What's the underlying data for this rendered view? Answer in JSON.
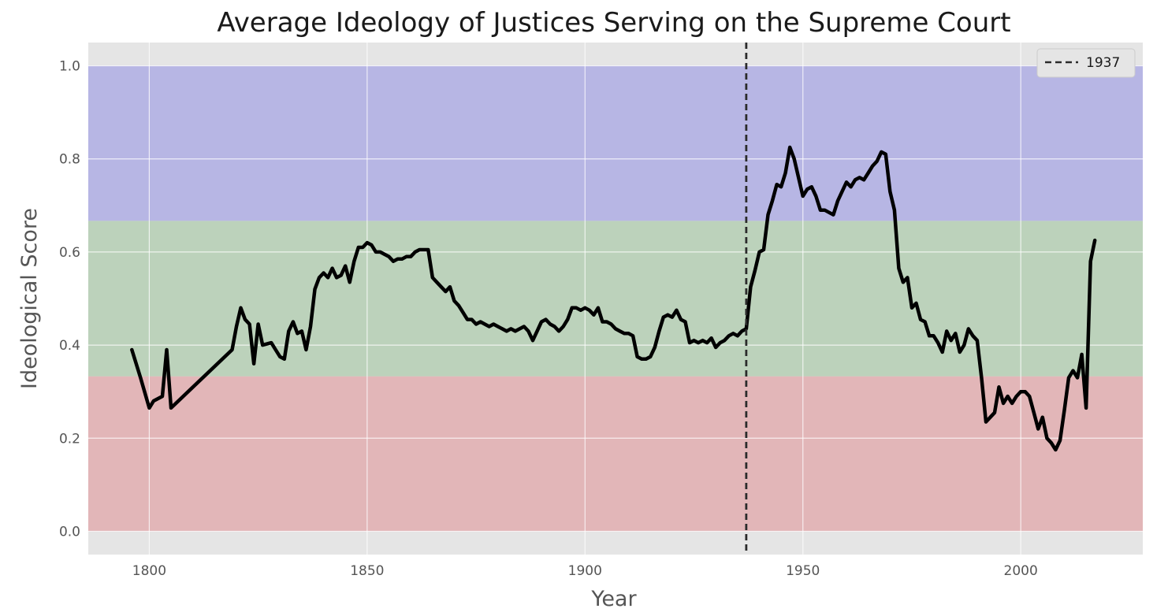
{
  "chart_data": {
    "type": "line",
    "title": "Average Ideology of Justices Serving on the Supreme Court",
    "xlabel": "Year",
    "ylabel": "Ideological Score",
    "xlim": [
      1786,
      2028
    ],
    "ylim": [
      -0.05,
      1.05
    ],
    "xticks": [
      1800,
      1850,
      1900,
      1950,
      2000
    ],
    "yticks": [
      0.0,
      0.2,
      0.4,
      0.6,
      0.8,
      1.0
    ],
    "ytick_labels": [
      "0.0",
      "0.2",
      "0.4",
      "0.6",
      "0.8",
      "1.0"
    ],
    "grid": true,
    "legend_position": "top-right",
    "bands": [
      {
        "from": 0.0,
        "to": 0.333,
        "color": "#e2b6b8"
      },
      {
        "from": 0.333,
        "to": 0.667,
        "color": "#bcd2bb"
      },
      {
        "from": 0.667,
        "to": 1.0,
        "color": "#b7b6e4"
      }
    ],
    "vline": {
      "x": 1937,
      "label": "1937",
      "style": "dashed",
      "color": "#2b2b2b"
    },
    "series": [
      {
        "color": "#000000",
        "x": [
          1796,
          1798,
          1800,
          1801,
          1803,
          1804,
          1805,
          1819,
          1820,
          1821,
          1822,
          1823,
          1824,
          1825,
          1826,
          1828,
          1829,
          1830,
          1831,
          1832,
          1833,
          1834,
          1835,
          1836,
          1837,
          1838,
          1839,
          1840,
          1841,
          1842,
          1843,
          1844,
          1845,
          1846,
          1847,
          1848,
          1849,
          1850,
          1851,
          1852,
          1853,
          1854,
          1855,
          1856,
          1857,
          1858,
          1859,
          1860,
          1861,
          1862,
          1863,
          1864,
          1865,
          1866,
          1867,
          1868,
          1869,
          1870,
          1871,
          1872,
          1873,
          1874,
          1875,
          1876,
          1877,
          1878,
          1879,
          1880,
          1881,
          1882,
          1883,
          1884,
          1885,
          1886,
          1887,
          1888,
          1889,
          1890,
          1891,
          1892,
          1893,
          1894,
          1895,
          1896,
          1897,
          1898,
          1899,
          1900,
          1901,
          1902,
          1903,
          1904,
          1905,
          1906,
          1907,
          1908,
          1909,
          1910,
          1911,
          1912,
          1913,
          1914,
          1915,
          1916,
          1917,
          1918,
          1919,
          1920,
          1921,
          1922,
          1923,
          1924,
          1925,
          1926,
          1927,
          1928,
          1929,
          1930,
          1931,
          1932,
          1933,
          1934,
          1935,
          1936,
          1937,
          1938,
          1939,
          1940,
          1941,
          1942,
          1943,
          1944,
          1945,
          1946,
          1947,
          1948,
          1949,
          1950,
          1951,
          1952,
          1953,
          1954,
          1955,
          1956,
          1957,
          1958,
          1959,
          1960,
          1961,
          1962,
          1963,
          1964,
          1965,
          1966,
          1967,
          1968,
          1969,
          1970,
          1971,
          1972,
          1973,
          1974,
          1975,
          1976,
          1977,
          1978,
          1979,
          1980,
          1981,
          1982,
          1983,
          1984,
          1985,
          1986,
          1987,
          1988,
          1989,
          1990,
          1991,
          1992,
          1993,
          1994,
          1995,
          1996,
          1997,
          1998,
          1999,
          2000,
          2001,
          2002,
          2003,
          2004,
          2005,
          2006,
          2007,
          2008,
          2009,
          2010,
          2011,
          2012,
          2013,
          2014,
          2015,
          2016,
          2017
        ],
        "y": [
          0.39,
          0.33,
          0.265,
          0.28,
          0.29,
          0.39,
          0.265,
          0.39,
          0.44,
          0.48,
          0.455,
          0.445,
          0.36,
          0.445,
          0.4,
          0.405,
          0.39,
          0.375,
          0.37,
          0.43,
          0.45,
          0.425,
          0.43,
          0.39,
          0.44,
          0.52,
          0.545,
          0.555,
          0.545,
          0.565,
          0.545,
          0.55,
          0.57,
          0.535,
          0.58,
          0.61,
          0.61,
          0.62,
          0.615,
          0.6,
          0.6,
          0.595,
          0.59,
          0.58,
          0.585,
          0.585,
          0.59,
          0.59,
          0.6,
          0.605,
          0.605,
          0.605,
          0.545,
          0.535,
          0.525,
          0.515,
          0.525,
          0.495,
          0.485,
          0.47,
          0.455,
          0.455,
          0.445,
          0.45,
          0.445,
          0.44,
          0.445,
          0.44,
          0.435,
          0.43,
          0.435,
          0.43,
          0.435,
          0.44,
          0.43,
          0.41,
          0.43,
          0.45,
          0.455,
          0.445,
          0.44,
          0.43,
          0.44,
          0.455,
          0.48,
          0.48,
          0.475,
          0.48,
          0.475,
          0.465,
          0.48,
          0.45,
          0.45,
          0.445,
          0.435,
          0.43,
          0.425,
          0.425,
          0.42,
          0.375,
          0.37,
          0.37,
          0.375,
          0.395,
          0.43,
          0.46,
          0.465,
          0.46,
          0.475,
          0.455,
          0.45,
          0.405,
          0.41,
          0.405,
          0.41,
          0.405,
          0.415,
          0.395,
          0.405,
          0.41,
          0.42,
          0.425,
          0.42,
          0.43,
          0.435,
          0.525,
          0.56,
          0.6,
          0.605,
          0.68,
          0.71,
          0.745,
          0.74,
          0.77,
          0.825,
          0.8,
          0.76,
          0.72,
          0.735,
          0.74,
          0.72,
          0.69,
          0.69,
          0.685,
          0.68,
          0.71,
          0.73,
          0.75,
          0.74,
          0.755,
          0.76,
          0.755,
          0.77,
          0.785,
          0.795,
          0.815,
          0.81,
          0.73,
          0.69,
          0.565,
          0.535,
          0.545,
          0.48,
          0.49,
          0.455,
          0.45,
          0.42,
          0.42,
          0.405,
          0.385,
          0.43,
          0.41,
          0.425,
          0.385,
          0.4,
          0.435,
          0.42,
          0.41,
          0.33,
          0.235,
          0.245,
          0.255,
          0.31,
          0.275,
          0.29,
          0.275,
          0.29,
          0.3,
          0.3,
          0.29,
          0.255,
          0.22,
          0.245,
          0.2,
          0.19,
          0.175,
          0.195,
          0.26,
          0.33,
          0.345,
          0.33,
          0.38,
          0.265,
          0.58,
          0.625
        ]
      }
    ]
  }
}
